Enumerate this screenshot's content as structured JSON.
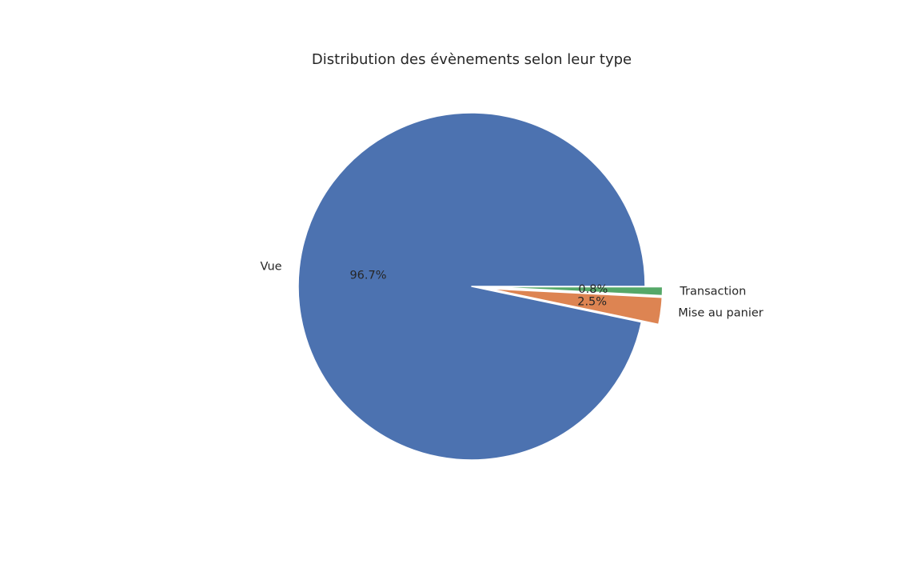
{
  "chart_data": {
    "type": "pie",
    "title": "Distribution des évènements selon leur type",
    "slices": [
      {
        "label": "Vue",
        "value": 96.7,
        "pct_label": "96.7%",
        "color": "#4c72b0",
        "explode": 0.0
      },
      {
        "label": "Mise au panier",
        "value": 2.5,
        "pct_label": "2.5%",
        "color": "#dd8452",
        "explode": 0.1
      },
      {
        "label": "Transaction",
        "value": 0.8,
        "pct_label": "0.8%",
        "color": "#55a868",
        "explode": 0.1
      }
    ],
    "start_angle_deg": 0,
    "direction": "counterclockwise",
    "legend": "none"
  }
}
